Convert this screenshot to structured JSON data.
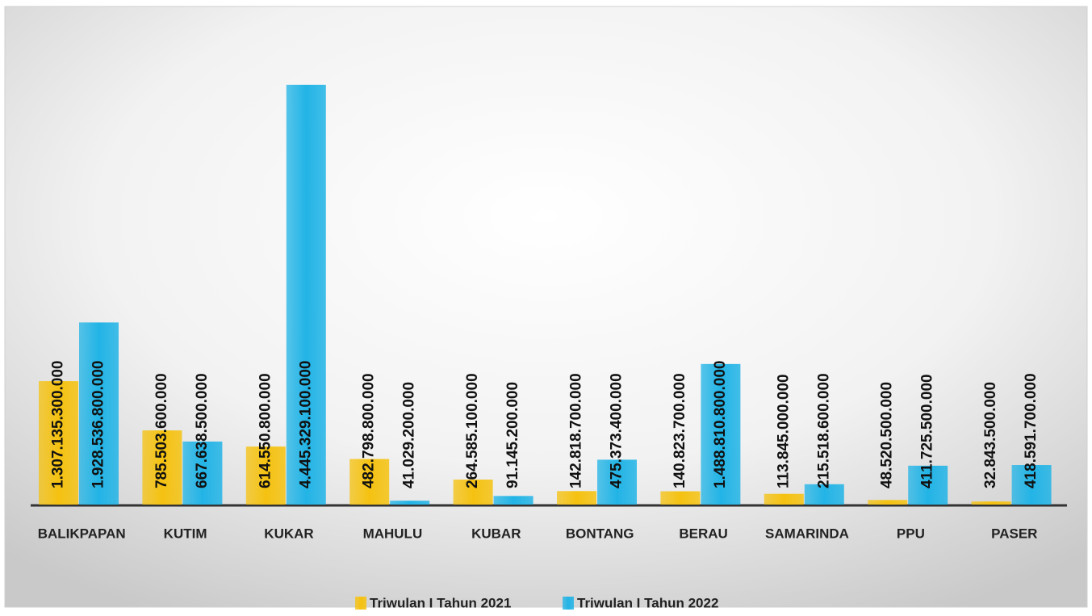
{
  "chart_data": {
    "type": "bar",
    "categories": [
      "BALIKPAPAN",
      "KUTIM",
      "KUKAR",
      "MAHULU",
      "KUBAR",
      "BONTANG",
      "BERAU",
      "SAMARINDA",
      "PPU",
      "PASER"
    ],
    "series": [
      {
        "name": "Triwulan I Tahun 2021",
        "color": "#f5c211",
        "values": [
          1307135300000,
          785503600000,
          614550800000,
          482798800000,
          264585100000,
          142818700000,
          140823700000,
          113845000000,
          48520500000,
          32843500000
        ],
        "value_labels": [
          "1.307.135.300.000",
          "785.503.600.000",
          "614.550.800.000",
          "482.798.800.000",
          "264.585.100.000",
          "142.818.700.000",
          "140.823.700.000",
          "113.845.000.000",
          "48.520.500.000",
          "32.843.500.000"
        ]
      },
      {
        "name": "Triwulan I Tahun 2022",
        "color": "#22b4e6",
        "values": [
          1928536800000,
          667638500000,
          4445329100000,
          41029200000,
          91145200000,
          475373400000,
          1488810800000,
          215518600000,
          411725500000,
          418591700000
        ],
        "value_labels": [
          "1.928.536.800.000",
          "667.638.500.000",
          "4.445.329.100.000",
          "41.029.200.000",
          "91.145.200.000",
          "475.373.400.000",
          "1.488.810.800.000",
          "215.518.600.000",
          "411.725.500.000",
          "418.591.700.000"
        ]
      }
    ]
  }
}
